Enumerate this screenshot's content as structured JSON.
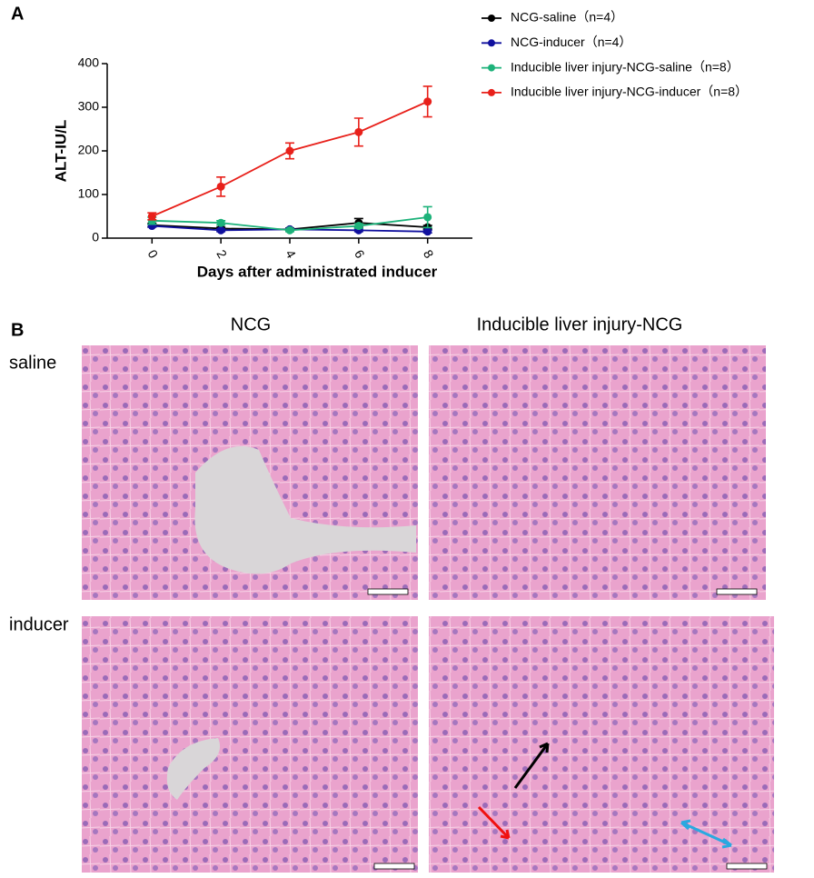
{
  "panel_a": {
    "label": "A"
  },
  "chart_data": {
    "type": "line",
    "x_label": "Days after administrated inducer",
    "y_label": "ALT-IU/L",
    "x": [
      0,
      2,
      4,
      6,
      8
    ],
    "xlim": [
      -1.3,
      9.3
    ],
    "xticks": [
      0,
      2,
      4,
      6,
      8
    ],
    "ylim": [
      0,
      400
    ],
    "yticks": [
      0,
      100,
      200,
      300,
      400
    ],
    "legend": "right",
    "series": [
      {
        "name": "NCG-saline（n=4）",
        "color": "#000000",
        "values": [
          30,
          22,
          20,
          35,
          25
        ],
        "errors": [
          4,
          3,
          3,
          10,
          4
        ]
      },
      {
        "name": "NCG-inducer（n=4）",
        "color": "#10109e",
        "values": [
          28,
          18,
          20,
          18,
          15
        ],
        "errors": [
          3,
          3,
          2,
          3,
          3
        ]
      },
      {
        "name": "Inducible liver injury-NCG-saline（n=8）",
        "color": "#1db27a",
        "values": [
          40,
          35,
          18,
          28,
          48
        ],
        "errors": [
          8,
          5,
          3,
          5,
          24
        ]
      },
      {
        "name": "Inducible liver injury-NCG-inducer（n=8）",
        "color": "#e8201a",
        "values": [
          50,
          118,
          200,
          243,
          313
        ],
        "errors": [
          8,
          22,
          18,
          32,
          35
        ]
      }
    ]
  },
  "panel_b": {
    "label": "B",
    "columns": [
      "NCG",
      "Inducible liver injury-NCG"
    ],
    "rows": [
      "saline",
      "inducer"
    ]
  }
}
